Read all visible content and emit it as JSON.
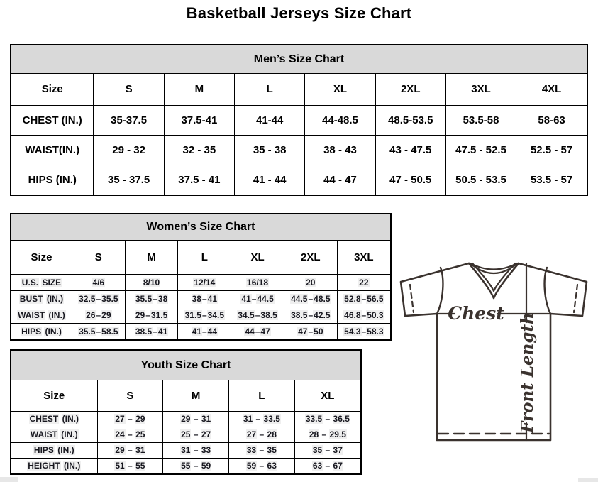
{
  "page_title": "Basketball Jerseys Size Chart",
  "tables": [
    {
      "id": "mens",
      "title": "Men’s Size Chart",
      "columns": [
        "Size",
        "S",
        "M",
        "L",
        "XL",
        "2XL",
        "3XL",
        "4XL"
      ],
      "rows": [
        {
          "label": "CHEST (IN.)",
          "values": [
            "35-37.5",
            "37.5-41",
            "41-44",
            "44-48.5",
            "48.5-53.5",
            "53.5-58",
            "58-63"
          ]
        },
        {
          "label": "WAIST(IN.)",
          "values": [
            "29 - 32",
            "32 - 35",
            "35 - 38",
            "38 - 43",
            "43 - 47.5",
            "47.5 - 52.5",
            "52.5 - 57"
          ]
        },
        {
          "label": "HIPS (IN.)",
          "values": [
            "35 - 37.5",
            "37.5 - 41",
            "41 - 44",
            "44 - 47",
            "47 - 50.5",
            "50.5 - 53.5",
            "53.5 - 57"
          ]
        }
      ]
    },
    {
      "id": "womens",
      "title": "Women’s Size Chart",
      "columns": [
        "Size",
        "S",
        "M",
        "L",
        "XL",
        "2XL",
        "3XL"
      ],
      "rows": [
        {
          "label": "U.S. SIZE",
          "values": [
            "4/6",
            "8/10",
            "12/14",
            "16/18",
            "20",
            "22"
          ]
        },
        {
          "label": "BUST (IN.)",
          "values": [
            "32.5–35.5",
            "35.5–38",
            "38–41",
            "41–44.5",
            "44.5–48.5",
            "52.8–56.5"
          ]
        },
        {
          "label": "WAIST (IN.)",
          "values": [
            "26–29",
            "29–31.5",
            "31.5–34.5",
            "34.5–38.5",
            "38.5–42.5",
            "46.8–50.3"
          ]
        },
        {
          "label": "HIPS (IN.)",
          "values": [
            "35.5–58.5",
            "38.5–41",
            "41–44",
            "44–47",
            "47–50",
            "54.3–58.3"
          ]
        }
      ]
    },
    {
      "id": "youth",
      "title": "Youth Size Chart",
      "columns": [
        "Size",
        "S",
        "M",
        "L",
        "XL"
      ],
      "rows": [
        {
          "label": "CHEST (IN.)",
          "values": [
            "27 – 29",
            "29 – 31",
            "31 – 33.5",
            "33.5 – 36.5"
          ]
        },
        {
          "label": "WAIST (IN.)",
          "values": [
            "24 – 25",
            "25 – 27",
            "27 – 28",
            "28 – 29.5"
          ]
        },
        {
          "label": "HIPS (IN.)",
          "values": [
            "29 – 31",
            "31 – 33",
            "33 – 35",
            "35 – 37"
          ]
        },
        {
          "label": "HEIGHT (IN.)",
          "values": [
            "51 – 55",
            "55 – 59",
            "59 – 63",
            "63 – 67"
          ]
        }
      ]
    }
  ],
  "diagram": {
    "chest_label": "Chest",
    "front_length_label": "Front Length"
  },
  "colors": {
    "table_header_bg": "#d9d9d9",
    "table_border": "#000000",
    "value_highlight_bg": "#efefef",
    "compact_text": "#17171f",
    "jersey_line": "#3a322e"
  }
}
